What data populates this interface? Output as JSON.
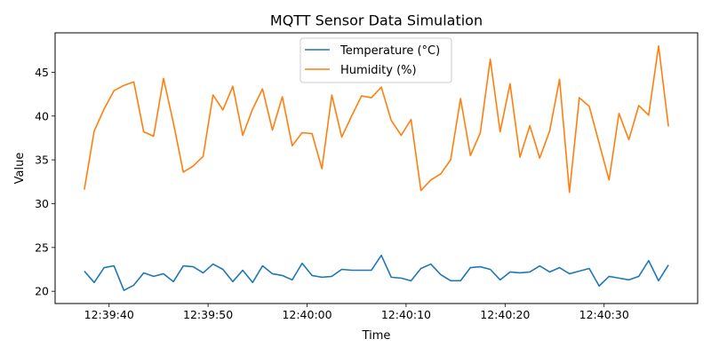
{
  "chart_data": {
    "type": "line",
    "title": "MQTT Sensor Data Simulation",
    "xlabel": "Time",
    "ylabel": "Value",
    "x": [
      "12:39:37.5",
      "12:39:38.5",
      "12:39:39.5",
      "12:39:40.5",
      "12:39:41.5",
      "12:39:42.5",
      "12:39:43.5",
      "12:39:44.5",
      "12:39:45.5",
      "12:39:46.5",
      "12:39:47.5",
      "12:39:48.5",
      "12:39:49.5",
      "12:39:50.5",
      "12:39:51.5",
      "12:39:52.5",
      "12:39:53.5",
      "12:39:54.5",
      "12:39:55.5",
      "12:39:56.5",
      "12:39:57.5",
      "12:39:58.5",
      "12:39:59.5",
      "12:40:00.5",
      "12:40:01.5",
      "12:40:02.5",
      "12:40:03.5",
      "12:40:04.5",
      "12:40:05.5",
      "12:40:06.5",
      "12:40:07.5",
      "12:40:08.5",
      "12:40:09.5",
      "12:40:10.5",
      "12:40:11.5",
      "12:40:12.5",
      "12:40:13.5",
      "12:40:14.5",
      "12:40:15.5",
      "12:40:16.5",
      "12:40:17.5",
      "12:40:18.5",
      "12:40:19.5",
      "12:40:20.5",
      "12:40:21.5",
      "12:40:22.5",
      "12:40:23.5",
      "12:40:24.5",
      "12:40:25.5",
      "12:40:26.5",
      "12:40:27.5",
      "12:40:28.5",
      "12:40:29.5",
      "12:40:30.5",
      "12:40:31.5",
      "12:40:32.5",
      "12:40:33.5",
      "12:40:34.5",
      "12:40:35.5",
      "12:40:36.5"
    ],
    "xticks": [
      "12:39:40",
      "12:39:50",
      "12:40:00",
      "12:40:10",
      "12:40:20",
      "12:40:30"
    ],
    "yticks": [
      20,
      25,
      30,
      35,
      40,
      45
    ],
    "ylim": [
      18.6,
      49.5
    ],
    "grid": false,
    "legend_position": "top-center",
    "series": [
      {
        "name": "Temperature (°C)",
        "color": "#1f77b4",
        "values": [
          22.3,
          21.0,
          22.7,
          22.9,
          20.1,
          20.7,
          22.1,
          21.7,
          22.0,
          21.1,
          22.9,
          22.8,
          22.1,
          23.1,
          22.5,
          21.1,
          22.4,
          21.0,
          22.9,
          22.0,
          21.8,
          21.3,
          23.2,
          21.8,
          21.6,
          21.7,
          22.5,
          22.4,
          22.4,
          22.4,
          24.1,
          21.6,
          21.5,
          21.2,
          22.6,
          23.1,
          21.9,
          21.2,
          21.2,
          22.7,
          22.8,
          22.5,
          21.3,
          22.2,
          22.1,
          22.2,
          22.9,
          22.2,
          22.7,
          22.0,
          22.3,
          22.6,
          20.6,
          21.7,
          21.5,
          21.3,
          21.7,
          23.5,
          21.2,
          23.0
        ]
      },
      {
        "name": "Humidity (%)",
        "color": "#ff7f0e",
        "values": [
          31.6,
          38.3,
          40.8,
          42.9,
          43.5,
          43.9,
          38.2,
          37.7,
          44.3,
          39.2,
          33.6,
          34.3,
          35.4,
          42.4,
          40.7,
          43.4,
          37.8,
          40.8,
          43.1,
          38.4,
          42.2,
          36.6,
          38.1,
          38.0,
          34.0,
          42.4,
          37.6,
          40.0,
          42.3,
          42.1,
          43.3,
          39.5,
          37.8,
          39.6,
          31.5,
          32.7,
          33.4,
          35.0,
          42.0,
          35.5,
          38.1,
          46.5,
          38.2,
          43.7,
          35.3,
          38.9,
          35.2,
          38.3,
          44.2,
          31.3,
          42.1,
          41.1,
          36.9,
          32.7,
          40.3,
          37.3,
          41.2,
          40.1,
          48.0,
          38.8
        ]
      }
    ]
  }
}
